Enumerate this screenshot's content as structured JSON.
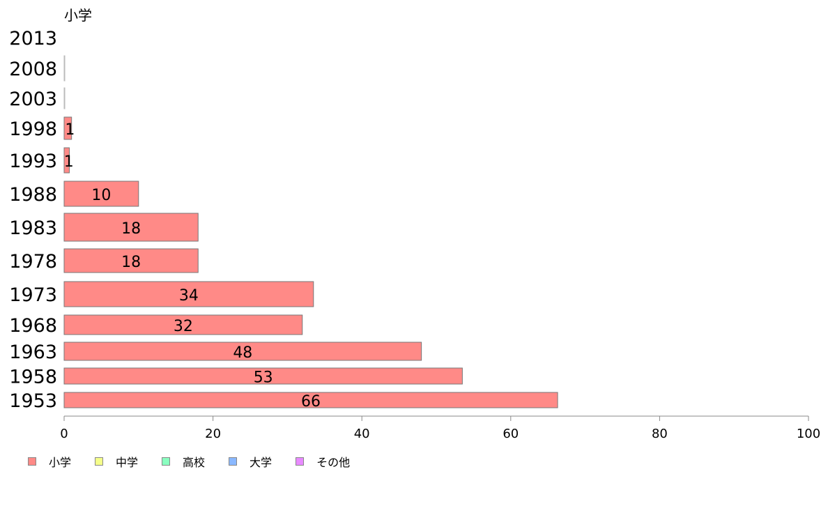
{
  "chart_data": {
    "type": "bar",
    "orientation": "horizontal",
    "subtitle": "小学",
    "categories": [
      "2013",
      "2008",
      "2003",
      "1998",
      "1993",
      "1988",
      "1983",
      "1978",
      "1973",
      "1968",
      "1963",
      "1958",
      "1953"
    ],
    "series": [
      {
        "name": "小学",
        "color": "#ff8a87",
        "values": [
          0,
          0.1,
          0.1,
          1,
          1,
          10,
          18,
          18,
          34,
          32,
          48,
          53,
          66
        ],
        "exact": [
          0,
          0.05,
          0.05,
          1.0,
          0.7,
          10.0,
          18.0,
          18.0,
          33.5,
          32.0,
          48.0,
          53.5,
          66.3
        ],
        "labels": [
          "",
          "",
          "",
          "1",
          "1",
          "10",
          "18",
          "18",
          "34",
          "32",
          "48",
          "53",
          "66"
        ]
      }
    ],
    "xlim": [
      0,
      100
    ],
    "xticks": [
      "0",
      "20",
      "40",
      "60",
      "80",
      "100"
    ],
    "grid": false,
    "legend_position": "bottom-left",
    "legend": [
      {
        "label": "小学",
        "color": "#ff8a87"
      },
      {
        "label": "中学",
        "color": "#f5ff8a"
      },
      {
        "label": "高校",
        "color": "#8affc0"
      },
      {
        "label": "大学",
        "color": "#8ab8ff"
      },
      {
        "label": "その他",
        "color": "#e88aff"
      }
    ]
  }
}
